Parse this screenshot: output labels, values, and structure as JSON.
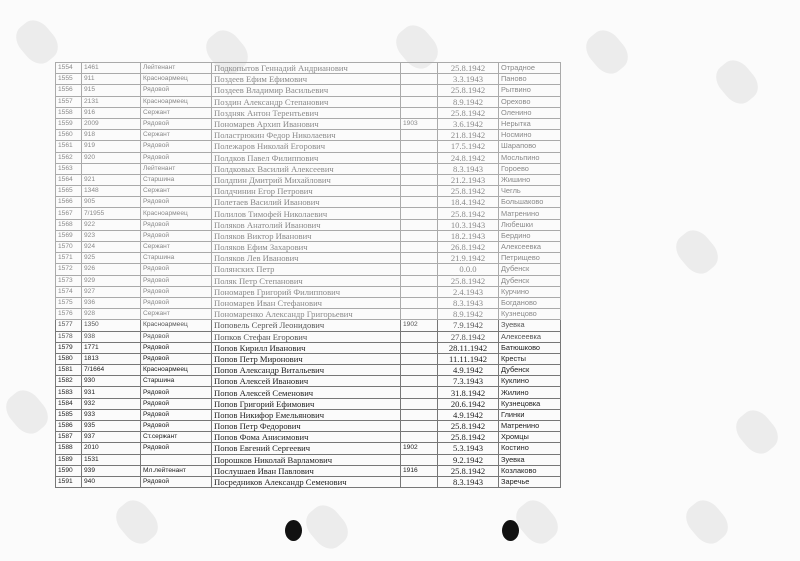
{
  "table": {
    "rows": [
      [
        "1554",
        "1461",
        "Лейтенант",
        "Подкопытов Геннадий Андрианович",
        "",
        "25.8.1942",
        "Отрадное"
      ],
      [
        "1555",
        "911",
        "Красноармеец",
        "Поздеев Ефим Ефимович",
        "",
        "3.3.1943",
        "Паново"
      ],
      [
        "1556",
        "915",
        "Рядовой",
        "Поздеев Владимир Васильевич",
        "",
        "25.8.1942",
        "Рытвино"
      ],
      [
        "1557",
        "2131",
        "Красноармеец",
        "Поздин Александр Степанович",
        "",
        "8.9.1942",
        "Орехово"
      ],
      [
        "1558",
        "916",
        "Сержант",
        "Поздняк Антон Терентьевич",
        "",
        "25.8.1942",
        "Оленино"
      ],
      [
        "1559",
        "2009",
        "Рядовой",
        "Пономарев Архип Иванович",
        "1903",
        "3.6.1942",
        "Нерытка"
      ],
      [
        "1560",
        "918",
        "Сержант",
        "Поластрюкин Федор Николаевич",
        "",
        "21.8.1942",
        "Носмино"
      ],
      [
        "1561",
        "919",
        "Рядовой",
        "Полежаров Николай Егорович",
        "",
        "17.5.1942",
        "Шарапово"
      ],
      [
        "1562",
        "920",
        "Рядовой",
        "Полдков Павел Филиппович",
        "",
        "24.8.1942",
        "Мосльпино"
      ],
      [
        "1563",
        "",
        "Лейтенант",
        "Полдковых Василий Алексеевич",
        "",
        "8.3.1943",
        "Гороево"
      ],
      [
        "1564",
        "921",
        "Старшина",
        "Полдпин Дмитрий Михайлович",
        "",
        "21.2.1943",
        "Жишино"
      ],
      [
        "1565",
        "1348",
        "Сержант",
        "Полдчинин Егор Петрович",
        "",
        "25.8.1942",
        "Чегль"
      ],
      [
        "1566",
        "905",
        "Рядовой",
        "Полетаев Василий Иванович",
        "",
        "18.4.1942",
        "Большаково"
      ],
      [
        "1567",
        "7/1955",
        "Красноармеец",
        "Полилов Тимофей Николаевич",
        "",
        "25.8.1942",
        "Матренино"
      ],
      [
        "1568",
        "922",
        "Рядовой",
        "Поляков Анатолий Иванович",
        "",
        "10.3.1943",
        "Любешки"
      ],
      [
        "1569",
        "923",
        "Рядовой",
        "Поляков Виктор Иванович",
        "",
        "18.2.1943",
        "Бердино"
      ],
      [
        "1570",
        "924",
        "Сержант",
        "Поляков Ефим Захарович",
        "",
        "26.8.1942",
        "Алексеевка"
      ],
      [
        "1571",
        "925",
        "Старшина",
        "Поляков Лев Иванович",
        "",
        "21.9.1942",
        "Петрищево"
      ],
      [
        "1572",
        "926",
        "Рядовой",
        "Полянских Петр",
        "",
        "0.0.0",
        "Дубенск"
      ],
      [
        "1573",
        "929",
        "Рядовой",
        "Поляк Петр Степанович",
        "",
        "25.8.1942",
        "Дубенск"
      ],
      [
        "1574",
        "927",
        "Рядовой",
        "Пономарев Григорий Филиппович",
        "",
        "2.4.1943",
        "Курчино"
      ],
      [
        "1575",
        "936",
        "Рядовой",
        "Пономарев Иван Стефанович",
        "",
        "8.3.1943",
        "Богданово"
      ],
      [
        "1576",
        "928",
        "Сержант",
        "Пономаренко Александр Григорьевич",
        "",
        "8.9.1942",
        "Кузнецово"
      ],
      [
        "1577",
        "1350",
        "Красноармеец",
        "Поповель Сергей Леонидович",
        "1902",
        "7.9.1942",
        "Зуевка"
      ],
      [
        "1578",
        "938",
        "Рядовой",
        "Попков Стефан Егорович",
        "",
        "27.8.1942",
        "Алексеевка"
      ],
      [
        "1579",
        "1771",
        "Рядовой",
        "Попов Кирилл Иванович",
        "",
        "28.11.1942",
        "Батюшково"
      ],
      [
        "1580",
        "1813",
        "Рядовой",
        "Попов Петр Миронович",
        "",
        "11.11.1942",
        "Кресты"
      ],
      [
        "1581",
        "7/1664",
        "Красноармеец",
        "Попов Александр Витальевич",
        "",
        "4.9.1942",
        "Дубенск"
      ],
      [
        "1582",
        "930",
        "Старшина",
        "Попов Алексей Иванович",
        "",
        "7.3.1943",
        "Куклино"
      ],
      [
        "1583",
        "931",
        "Рядовой",
        "Попов Алексей Семенович",
        "",
        "31.8.1942",
        "Жилино"
      ],
      [
        "1584",
        "932",
        "Рядовой",
        "Попов Григорий Ефимович",
        "",
        "20.6.1942",
        "Кузнецовка"
      ],
      [
        "1585",
        "933",
        "Рядовой",
        "Попов Никифор Емельянович",
        "",
        "4.9.1942",
        "Глинки"
      ],
      [
        "1586",
        "935",
        "Рядовой",
        "Попов Петр Федорович",
        "",
        "25.8.1942",
        "Матренино"
      ],
      [
        "1587",
        "937",
        "Ст.сержант",
        "Попов Фома Анисимович",
        "",
        "25.8.1942",
        "Хромцы"
      ],
      [
        "1588",
        "2010",
        "Рядовой",
        "Попов Евгений Сергеевич",
        "1902",
        "5.3.1943",
        "Костино"
      ],
      [
        "1589",
        "1531",
        "",
        "Порошков Николай Варламович",
        "",
        "9.2.1942",
        "Зуевка"
      ],
      [
        "1590",
        "939",
        "Мл.лейтенант",
        "Послушаев Иван Павлович",
        "1916",
        "25.8.1942",
        "Козлаково"
      ],
      [
        "1591",
        "940",
        "Рядовой",
        "Посредников Александр Семенович",
        "",
        "8.3.1943",
        "Заречье"
      ]
    ]
  }
}
